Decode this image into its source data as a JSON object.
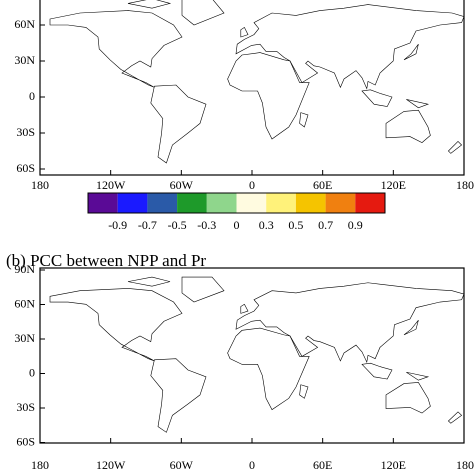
{
  "panels": [
    {
      "y_labels": [
        "60N",
        "30N",
        "0",
        "30S",
        "60S"
      ],
      "x_labels": [
        "180",
        "120W",
        "60W",
        "0",
        "60E",
        "120E",
        "180"
      ]
    },
    {
      "title": "(b) PCC between NPP and Pr",
      "y_labels": [
        "90N",
        "60N",
        "30N",
        "0",
        "30S",
        "60S"
      ],
      "x_labels": [
        "180",
        "120W",
        "60W",
        "0",
        "60E",
        "120E",
        "180"
      ]
    }
  ],
  "colorbar": {
    "labels": [
      "-0.9",
      "-0.7",
      "-0.5",
      "-0.3",
      "0",
      "0.3",
      "0.5",
      "0.7",
      "0.9"
    ]
  }
}
